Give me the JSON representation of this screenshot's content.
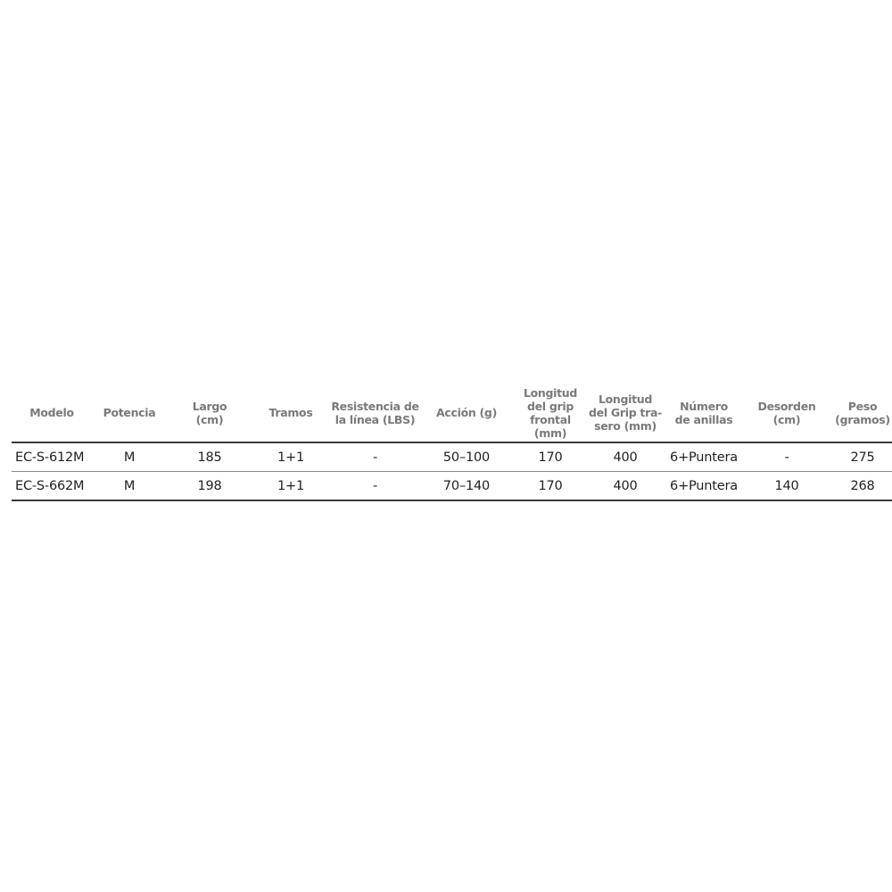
{
  "table": {
    "headers": [
      [
        "Modelo"
      ],
      [
        "Potencia"
      ],
      [
        "Largo",
        "(cm)"
      ],
      [
        "Tramos"
      ],
      [
        "Resistencia de",
        "la línea (LBS)"
      ],
      [
        "Acción (g)"
      ],
      [
        "Longitud",
        "del grip",
        "frontal",
        "(mm)"
      ],
      [
        "Longitud",
        "del Grip tra-",
        "sero (mm)"
      ],
      [
        "Número",
        "de anillas"
      ],
      [
        "Desorden",
        "(cm)"
      ],
      [
        "Peso",
        "(gramos)"
      ]
    ],
    "rows": [
      [
        "EC-S-612M",
        "M",
        "185",
        "1+1",
        "-",
        "50–100",
        "170",
        "400",
        "6+Puntera",
        "-",
        "275"
      ],
      [
        "EC-S-662M",
        "M",
        "198",
        "1+1",
        "-",
        "70–140",
        "170",
        "400",
        "6+Puntera",
        "140",
        "268"
      ]
    ]
  }
}
